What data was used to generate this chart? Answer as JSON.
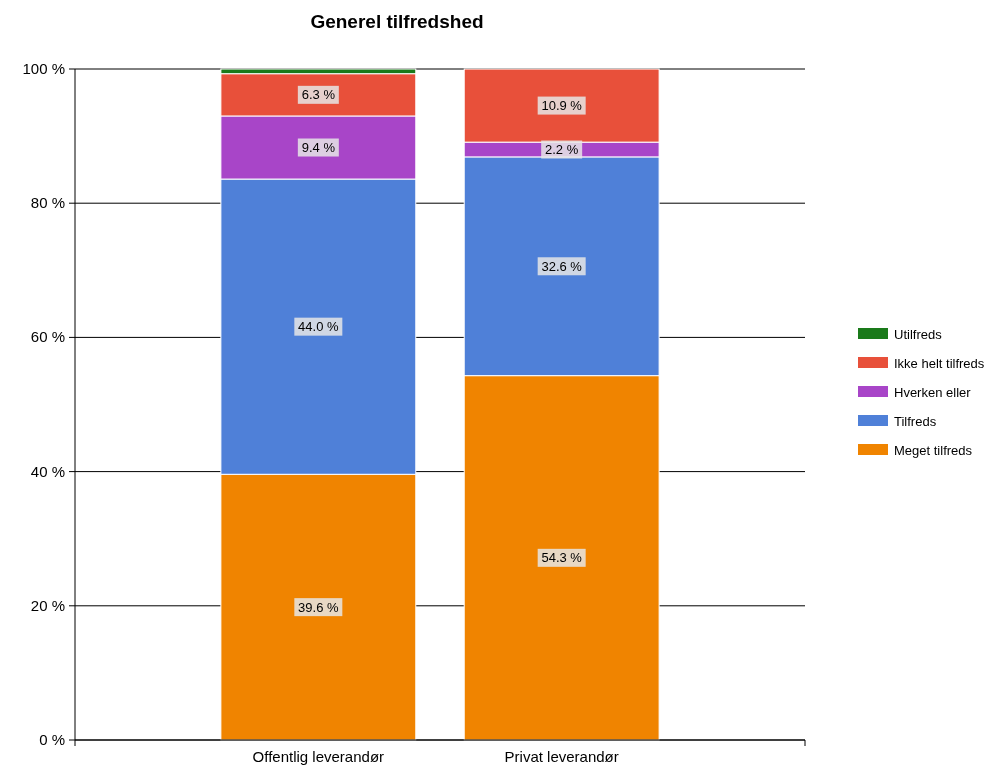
{
  "chart_data": {
    "type": "bar",
    "title": "Generel tilfredshed",
    "stacked": true,
    "categories": [
      "Offentlig leverandør",
      "Privat leverandør"
    ],
    "series": [
      {
        "name": "Meget tilfreds",
        "color": "#f08400",
        "values": [
          39.6,
          54.3
        ],
        "value_labels": [
          "39.6 %",
          "54.3 %"
        ]
      },
      {
        "name": "Tilfreds",
        "color": "#4f80d8",
        "values": [
          44.0,
          32.6
        ],
        "value_labels": [
          "44.0 %",
          "32.6 %"
        ]
      },
      {
        "name": "Hverken eller",
        "color": "#a845c8",
        "values": [
          9.4,
          2.2
        ],
        "value_labels": [
          "9.4 %",
          "2.2 %"
        ]
      },
      {
        "name": "Ikke helt tilfreds",
        "color": "#e8503a",
        "values": [
          6.3,
          10.9
        ],
        "value_labels": [
          "6.3 %",
          "10.9 %"
        ]
      },
      {
        "name": "Utilfreds",
        "color": "#1a7a1a",
        "values": [
          0.7,
          0
        ],
        "value_labels": [
          null,
          null
        ]
      }
    ],
    "ylim": [
      0,
      100
    ],
    "yticks": [
      {
        "value": 0,
        "label": "0 %"
      },
      {
        "value": 20,
        "label": "20 %"
      },
      {
        "value": 40,
        "label": "40 %"
      },
      {
        "value": 60,
        "label": "60 %"
      },
      {
        "value": 80,
        "label": "80 %"
      },
      {
        "value": 100,
        "label": "100 %"
      }
    ],
    "grid": "y",
    "legend": "right"
  }
}
